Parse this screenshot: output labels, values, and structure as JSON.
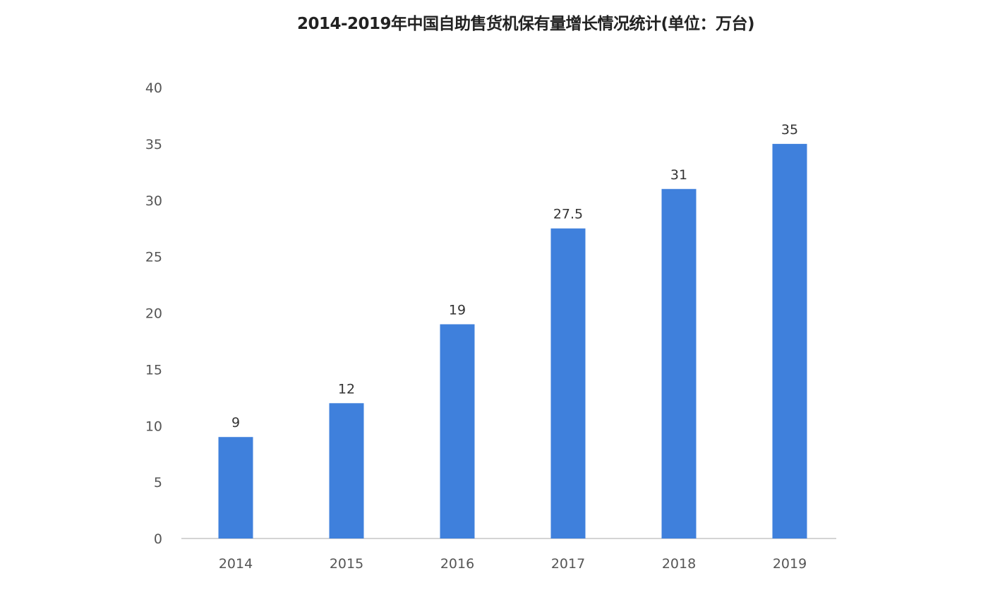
{
  "chart_data": {
    "type": "bar",
    "title": "2014-2019年中国自助售货机保有量增长情况统计(单位：万台)",
    "categories": [
      "2014",
      "2015",
      "2016",
      "2017",
      "2018",
      "2019"
    ],
    "values": [
      9,
      12,
      19,
      27.5,
      31,
      35
    ],
    "data_labels": [
      "9",
      "12",
      "19",
      "27.5",
      "31",
      "35"
    ],
    "xlabel": "",
    "ylabel": "",
    "ylim": [
      0,
      40
    ],
    "yticks": [
      0,
      5,
      10,
      15,
      20,
      25,
      30,
      35,
      40
    ],
    "grid": false,
    "legend": "none",
    "bar_color": "#3f80dc"
  }
}
